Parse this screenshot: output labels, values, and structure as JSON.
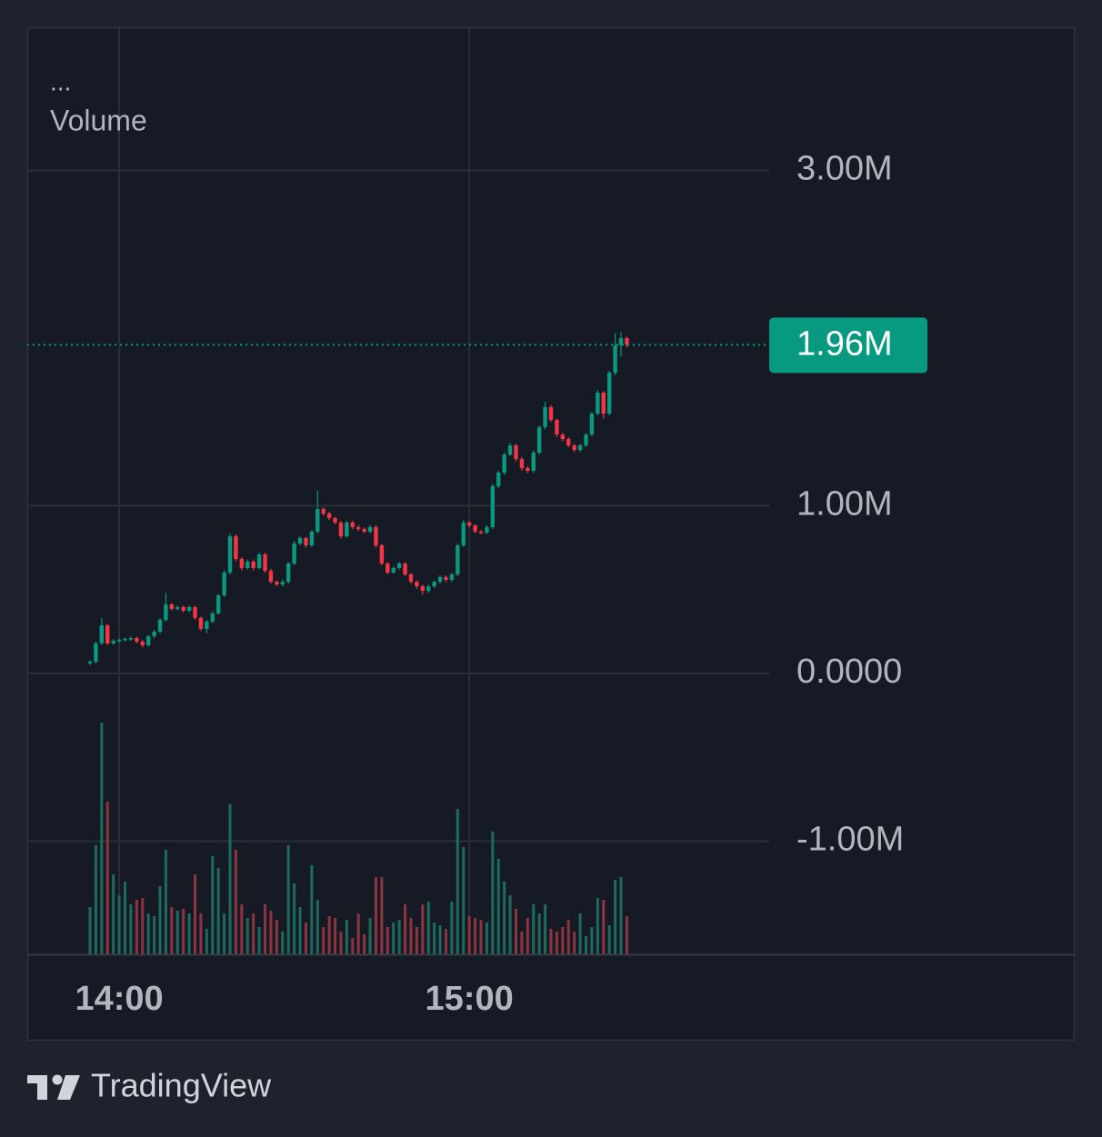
{
  "chart_data": {
    "type": "candlestick",
    "menu": "...",
    "title": "Volume",
    "x": [
      835,
      836,
      837,
      838,
      839,
      840,
      841,
      842,
      843,
      844,
      845,
      846,
      847,
      848,
      849,
      850,
      851,
      852,
      853,
      854,
      855,
      856,
      857,
      858,
      859,
      860,
      861,
      862,
      863,
      864,
      865,
      866,
      867,
      868,
      869,
      870,
      871,
      872,
      873,
      874,
      875,
      876,
      877,
      878,
      879,
      880,
      881,
      882,
      883,
      884,
      885,
      886,
      887,
      888,
      889,
      890,
      891,
      892,
      893,
      894,
      895,
      896,
      897,
      898,
      899,
      900,
      901,
      902,
      903,
      904,
      905,
      906,
      907,
      908,
      909,
      910,
      911,
      912,
      913,
      914,
      915,
      916,
      917,
      918,
      919,
      920,
      921,
      922,
      923,
      924,
      925,
      926,
      927
    ],
    "open": [
      60000,
      70000,
      179000,
      287000,
      179000,
      195000,
      200000,
      206000,
      211000,
      190000,
      168000,
      222000,
      249000,
      320000,
      412000,
      385000,
      396000,
      374000,
      396000,
      331000,
      266000,
      309000,
      358000,
      466000,
      602000,
      818000,
      683000,
      629000,
      667000,
      629000,
      710000,
      612000,
      547000,
      531000,
      547000,
      656000,
      775000,
      808000,
      764000,
      846000,
      981000,
      954000,
      927000,
      900000,
      818000,
      900000,
      873000,
      862000,
      846000,
      873000,
      764000,
      656000,
      602000,
      629000,
      656000,
      591000,
      547000,
      520000,
      493000,
      520000,
      547000,
      575000,
      558000,
      591000,
      764000,
      900000,
      883000,
      846000,
      840000,
      873000,
      1117000,
      1198000,
      1306000,
      1360000,
      1279000,
      1225000,
      1209000,
      1317000,
      1469000,
      1588000,
      1512000,
      1425000,
      1398000,
      1360000,
      1333000,
      1360000,
      1425000,
      1550000,
      1675000,
      1550000,
      1794000,
      1957000,
      2000000
    ],
    "high": [
      80000,
      190000,
      330000,
      295000,
      205000,
      210000,
      215000,
      220000,
      220000,
      200000,
      230000,
      260000,
      330000,
      480000,
      420000,
      405000,
      405000,
      405000,
      405000,
      340000,
      320000,
      370000,
      475000,
      615000,
      835000,
      830000,
      695000,
      680000,
      680000,
      720000,
      720000,
      625000,
      555000,
      560000,
      665000,
      790000,
      820000,
      815000,
      855000,
      1090000,
      990000,
      965000,
      935000,
      910000,
      910000,
      910000,
      885000,
      870000,
      885000,
      885000,
      775000,
      665000,
      640000,
      665000,
      665000,
      600000,
      555000,
      530000,
      530000,
      555000,
      585000,
      585000,
      600000,
      775000,
      915000,
      910000,
      890000,
      855000,
      885000,
      1130000,
      1210000,
      1320000,
      1375000,
      1370000,
      1290000,
      1235000,
      1330000,
      1480000,
      1620000,
      1600000,
      1520000,
      1435000,
      1410000,
      1370000,
      1370000,
      1435000,
      1560000,
      1690000,
      1685000,
      1805000,
      2030000,
      2035000,
      2010000
    ],
    "low": [
      50000,
      60000,
      170000,
      170000,
      170000,
      185000,
      190000,
      195000,
      180000,
      155000,
      160000,
      210000,
      240000,
      310000,
      375000,
      375000,
      365000,
      365000,
      320000,
      255000,
      240000,
      300000,
      350000,
      455000,
      590000,
      670000,
      615000,
      620000,
      615000,
      620000,
      600000,
      535000,
      520000,
      520000,
      535000,
      645000,
      765000,
      750000,
      755000,
      835000,
      940000,
      915000,
      890000,
      805000,
      810000,
      860000,
      850000,
      835000,
      835000,
      750000,
      645000,
      590000,
      595000,
      620000,
      580000,
      535000,
      505000,
      470000,
      480000,
      510000,
      535000,
      545000,
      545000,
      580000,
      755000,
      870000,
      835000,
      830000,
      830000,
      860000,
      1105000,
      1185000,
      1295000,
      1265000,
      1210000,
      1195000,
      1195000,
      1305000,
      1455000,
      1500000,
      1410000,
      1385000,
      1350000,
      1320000,
      1320000,
      1350000,
      1415000,
      1540000,
      1520000,
      1540000,
      1780000,
      1890000,
      1945000
    ],
    "close": [
      70000,
      179000,
      287000,
      179000,
      195000,
      200000,
      206000,
      211000,
      190000,
      168000,
      222000,
      249000,
      320000,
      412000,
      385000,
      396000,
      374000,
      396000,
      331000,
      266000,
      309000,
      358000,
      466000,
      602000,
      818000,
      683000,
      629000,
      667000,
      629000,
      710000,
      612000,
      547000,
      531000,
      547000,
      656000,
      775000,
      808000,
      764000,
      846000,
      981000,
      954000,
      927000,
      900000,
      818000,
      900000,
      873000,
      862000,
      846000,
      873000,
      764000,
      656000,
      602000,
      629000,
      656000,
      591000,
      547000,
      520000,
      493000,
      520000,
      547000,
      575000,
      558000,
      591000,
      764000,
      900000,
      883000,
      846000,
      840000,
      873000,
      1117000,
      1198000,
      1306000,
      1360000,
      1279000,
      1225000,
      1209000,
      1317000,
      1469000,
      1588000,
      1512000,
      1425000,
      1398000,
      1360000,
      1333000,
      1360000,
      1425000,
      1550000,
      1675000,
      1550000,
      1794000,
      1957000,
      2000000,
      1960000
    ],
    "volume": [
      52,
      120,
      255,
      168,
      88,
      65,
      80,
      55,
      60,
      62,
      45,
      42,
      75,
      115,
      52,
      48,
      50,
      45,
      88,
      45,
      28,
      108,
      95,
      45,
      165,
      115,
      55,
      40,
      45,
      30,
      55,
      48,
      38,
      25,
      120,
      78,
      52,
      35,
      98,
      60,
      30,
      42,
      40,
      25,
      38,
      18,
      45,
      22,
      40,
      85,
      85,
      30,
      35,
      38,
      55,
      40,
      30,
      55,
      58,
      35,
      32,
      28,
      58,
      160,
      118,
      42,
      40,
      38,
      35,
      135,
      105,
      80,
      65,
      50,
      25,
      40,
      55,
      45,
      55,
      28,
      25,
      30,
      38,
      25,
      45,
      20,
      30,
      62,
      60,
      32,
      82,
      85,
      42
    ],
    "up_color": "#089981",
    "down_color": "#f23645",
    "volume_up_color": "#1d6b5e",
    "volume_down_color": "#8b3540",
    "xlim": [
      824.25,
      951.4
    ],
    "xticks": [
      {
        "value": 840,
        "label": "14:00"
      },
      {
        "value": 900,
        "label": "15:00"
      }
    ],
    "ylim": [
      -1675000,
      3854000
    ],
    "yticks": [
      {
        "value": 3000000,
        "label": "3.00M"
      },
      {
        "value": 1000000,
        "label": "1.00M"
      },
      {
        "value": 0,
        "label": "0.0000"
      },
      {
        "value": -1000000,
        "label": "-1.00M"
      }
    ],
    "vlim": [
      0,
      1020
    ],
    "last_price": {
      "value": 1960000,
      "label": "1.96M"
    },
    "grid": true
  },
  "footer": {
    "brand": "TradingView"
  }
}
